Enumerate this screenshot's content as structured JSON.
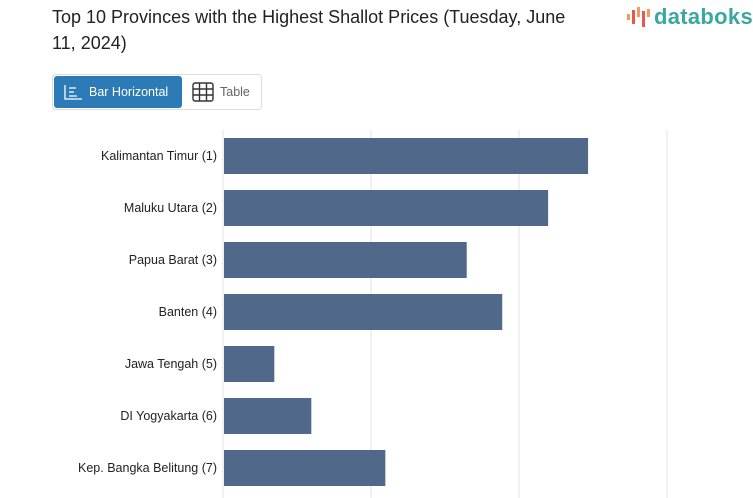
{
  "header": {
    "title": "Top 10 Provinces with the Highest Shallot Prices (Tuesday, June 11, 2024)",
    "logo_text": "databoks"
  },
  "view_tabs": [
    {
      "label": "Bar Horizontal",
      "icon": "bar-chart-icon",
      "active": true
    },
    {
      "label": "Table",
      "icon": "table-icon",
      "active": false
    }
  ],
  "colors": {
    "bar": "#50698a",
    "accent": "#2c7bb6",
    "grid": "#e3e3e3"
  },
  "chart_data": {
    "type": "bar",
    "orientation": "horizontal",
    "title": "Top 10 Provinces with the Highest Shallot Prices (Tuesday, June 11, 2024)",
    "categories": [
      "Kalimantan Timur (1)",
      "Maluku Utara (2)",
      "Papua Barat (3)",
      "Banten (4)",
      "Jawa Tengah (5)",
      "DI Yogyakarta (6)",
      "Kep. Bangka Belitung (7)"
    ],
    "values": [
      2.46,
      2.19,
      1.64,
      1.88,
      0.34,
      0.59,
      1.09
    ],
    "value_units": "relative (gridline interval = 1; no axis labels visible)",
    "xlim": [
      0,
      3
    ],
    "grid": true,
    "xlabel": "",
    "ylabel": ""
  }
}
